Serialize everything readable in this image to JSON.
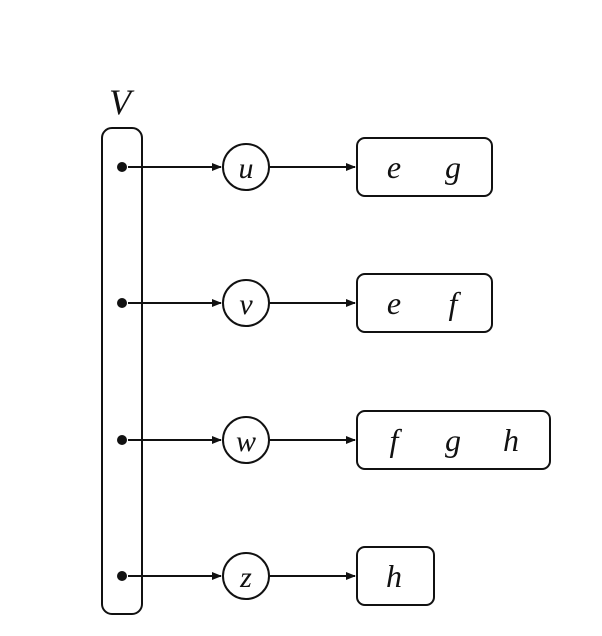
{
  "diagram": {
    "set_label": "V",
    "rows": [
      {
        "vertex": "u",
        "items": [
          "e",
          "g"
        ]
      },
      {
        "vertex": "v",
        "items": [
          "e",
          "f"
        ]
      },
      {
        "vertex": "w",
        "items": [
          "f",
          "g",
          "h"
        ]
      },
      {
        "vertex": "z",
        "items": [
          "h"
        ]
      }
    ],
    "colors": {
      "ink": "#111111",
      "background": "#ffffff"
    }
  }
}
